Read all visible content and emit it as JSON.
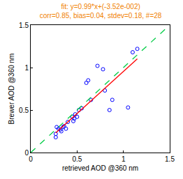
{
  "chart_data": {
    "type": "scatter",
    "title": "fit: y=0.99*x+(-3.52e-002)",
    "subtitle": "corr=0.85, bias=0.04, stdev=0.18, #=28",
    "x_label": "retrieved AOD @360 nm",
    "y_label": "Brewer AOD @360 nm",
    "xlim": [
      0,
      1.5
    ],
    "ylim": [
      0,
      1.5
    ],
    "xticks": [
      0,
      0.5,
      1,
      1.5
    ],
    "yticks": [
      0,
      0.5,
      1,
      1.5
    ],
    "grid": false,
    "series": [
      {
        "type": "scatter",
        "marker": "circle-open",
        "color": "#0000ff",
        "x": [
          0.27,
          0.27,
          0.28,
          0.3,
          0.32,
          0.33,
          0.35,
          0.36,
          0.38,
          0.4,
          0.45,
          0.46,
          0.47,
          0.48,
          0.5,
          0.52,
          0.55,
          0.6,
          0.62,
          0.65,
          0.72,
          0.78,
          0.8,
          0.85,
          0.88,
          1.05,
          1.1,
          1.15
        ],
        "values": [
          0.18,
          0.22,
          0.3,
          0.28,
          0.27,
          0.25,
          0.3,
          0.31,
          0.28,
          0.36,
          0.42,
          0.37,
          0.4,
          0.45,
          0.42,
          0.5,
          0.52,
          0.82,
          0.85,
          0.62,
          1.02,
          0.98,
          0.73,
          0.5,
          0.62,
          0.53,
          1.18,
          1.22
        ]
      },
      {
        "type": "line",
        "line_style": "solid",
        "color": "#ff0000",
        "x": [
          0.27,
          1.15
        ],
        "values": [
          0.2321,
          1.1033
        ]
      },
      {
        "type": "line",
        "line_style": "dash",
        "color": "#00cc44",
        "x": [
          0,
          1.5
        ],
        "values": [
          0,
          1.5
        ]
      }
    ]
  }
}
